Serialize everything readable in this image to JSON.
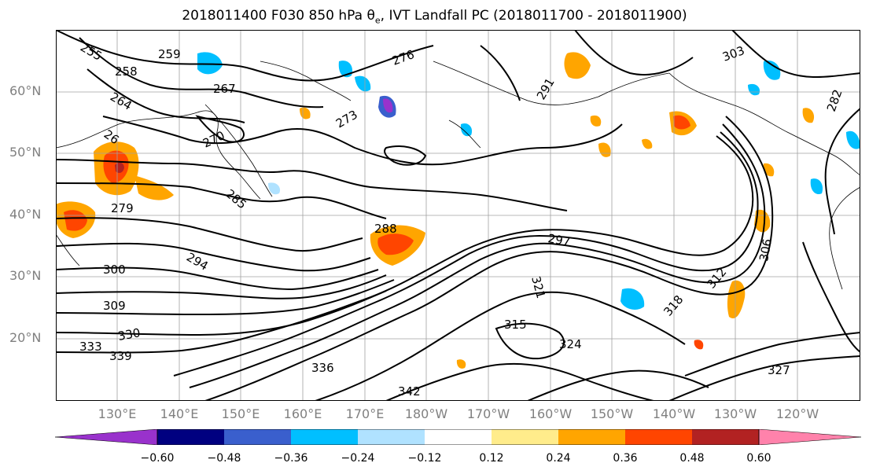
{
  "title_main": "2018011400 F030 850 hPa ",
  "title_theta": "θ",
  "title_sub": "e",
  "title_rest": ", IVT Landfall PC (2018011700 - 2018011900)",
  "lat_labels": [
    "60°N",
    "50°N",
    "40°N",
    "30°N",
    "20°N"
  ],
  "lon_labels": [
    "130°E",
    "140°E",
    "150°E",
    "160°E",
    "170°E",
    "180°W",
    "170°W",
    "160°W",
    "150°W",
    "140°W",
    "130°W",
    "120°W"
  ],
  "contour_labels": [
    "255",
    "259",
    "258",
    "264",
    "267",
    "26",
    "270",
    "273",
    "276",
    "279",
    "282",
    "285",
    "288",
    "291",
    "294",
    "297",
    "300",
    "303",
    "306",
    "309",
    "312",
    "315",
    "318",
    "321",
    "324",
    "327",
    "330",
    "333",
    "336",
    "339",
    "342"
  ],
  "colorbar": {
    "ticks": [
      "−0.60",
      "−0.48",
      "−0.36",
      "−0.24",
      "−0.12",
      "0.12",
      "0.24",
      "0.36",
      "0.48",
      "0.60"
    ],
    "colors": [
      "#9932cc",
      "#000080",
      "#3a5fcd",
      "#00bfff",
      "#b0e2ff",
      "#ffffff",
      "#ffec8b",
      "#ffa500",
      "#ff4500",
      "#b22222",
      "#ff82ab"
    ]
  }
}
